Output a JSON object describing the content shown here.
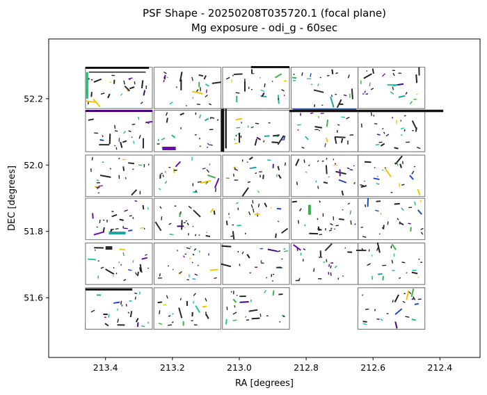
{
  "chart_data": {
    "type": "scatter",
    "title": "PSF Shape - 20250208T035720.1 (focal plane)",
    "subtitle": "Mg exposure - odi_g - 60sec",
    "xlabel": "RA [degrees]",
    "ylabel": "DEC [degrees]",
    "xlim": [
      213.57,
      212.28
    ],
    "ylim": [
      51.42,
      52.38
    ],
    "x_inverted": true,
    "xticks": [
      213.4,
      213.2,
      213.0,
      212.8,
      212.6,
      212.4
    ],
    "xtick_labels": [
      "213.4",
      "213.2",
      "213.0",
      "212.8",
      "212.6",
      "212.4"
    ],
    "yticks": [
      51.6,
      51.8,
      52.0,
      52.2
    ],
    "ytick_labels": [
      "51.6",
      "51.8",
      "52.0",
      "52.2"
    ],
    "grid": false,
    "legend": "none",
    "colors": {
      "ccd_outline": "#7a7a7a",
      "psf_palette": [
        "#1f1f1f",
        "#2a2a2a",
        "#4b0082",
        "#6a0dad",
        "#2146c7",
        "#1aa3a3",
        "#22b573",
        "#3cb043",
        "#1fc4a0",
        "#f5c400"
      ]
    },
    "ccd_grid": {
      "columns_ra_start": [
        213.46,
        213.255,
        213.05,
        212.845,
        212.645
      ],
      "column_width_ra": 0.2,
      "rows_dec_top": [
        52.295,
        52.165,
        52.03,
        51.9,
        51.765,
        51.63
      ],
      "row_height_dec": 0.125,
      "missing_cells": [
        [
          5,
          3
        ]
      ]
    },
    "psf_sticks": {
      "count": 700,
      "description_fields": [
        "ra",
        "dec",
        "length",
        "angle",
        "color"
      ]
    }
  }
}
